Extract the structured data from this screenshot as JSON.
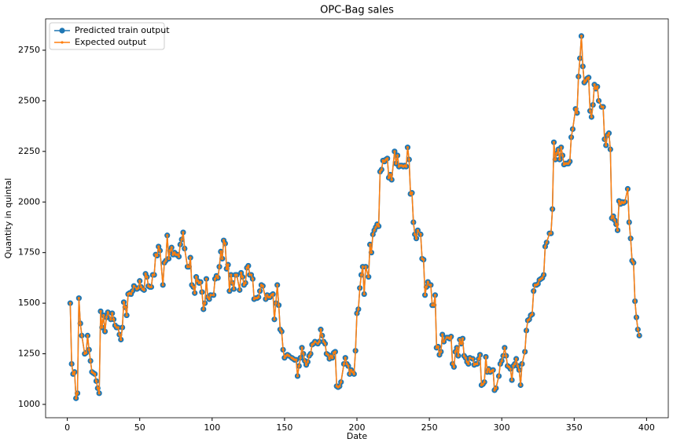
{
  "chart_data": {
    "type": "line",
    "title": "OPC-Bag sales",
    "x_label": "Date",
    "y_label": "Quantity in quintal",
    "xlim": [
      -15,
      415
    ],
    "ylim": [
      934,
      2905
    ],
    "xticks": [
      0,
      50,
      100,
      150,
      200,
      250,
      300,
      350,
      400
    ],
    "yticks": [
      1000,
      1250,
      1500,
      1750,
      2000,
      2250,
      2500,
      2750
    ],
    "grid": false,
    "legend": "upper left",
    "x": [
      2,
      3,
      4,
      5,
      6,
      7,
      8,
      9,
      10,
      12,
      13,
      14,
      15,
      16,
      17,
      18,
      19,
      20,
      21,
      22,
      23,
      24,
      25,
      26,
      27,
      28,
      30,
      31,
      32,
      33,
      34,
      35,
      36,
      37,
      38,
      39,
      40,
      41,
      42,
      43,
      44,
      45,
      46,
      48,
      49,
      50,
      51,
      52,
      53,
      54,
      55,
      56,
      57,
      58,
      59,
      60,
      61,
      62,
      63,
      64,
      66,
      67,
      68,
      69,
      70,
      71,
      72,
      73,
      74,
      75,
      76,
      77,
      78,
      79,
      80,
      81,
      83,
      84,
      85,
      86,
      87,
      88,
      89,
      90,
      91,
      92,
      93,
      94,
      95,
      96,
      97,
      98,
      99,
      101,
      102,
      103,
      104,
      105,
      106,
      107,
      108,
      109,
      110,
      111,
      112,
      113,
      114,
      115,
      116,
      117,
      119,
      120,
      121,
      122,
      123,
      124,
      125,
      126,
      127,
      128,
      129,
      130,
      131,
      132,
      133,
      134,
      135,
      137,
      138,
      139,
      140,
      141,
      142,
      143,
      144,
      145,
      146,
      147,
      148,
      149,
      150,
      151,
      152,
      153,
      155,
      156,
      157,
      158,
      159,
      160,
      161,
      162,
      163,
      164,
      165,
      166,
      167,
      168,
      169,
      170,
      171,
      173,
      174,
      175,
      176,
      177,
      178,
      179,
      180,
      181,
      182,
      183,
      184,
      185,
      186,
      187,
      188,
      189,
      191,
      192,
      193,
      194,
      195,
      196,
      197,
      198,
      199,
      200,
      201,
      202,
      203,
      204,
      205,
      206,
      208,
      209,
      210,
      211,
      212,
      213,
      214,
      215,
      216,
      217,
      218,
      219,
      220,
      221,
      222,
      223,
      224,
      226,
      227,
      228,
      229,
      230,
      231,
      232,
      233,
      234,
      235,
      236,
      237,
      238,
      239,
      240,
      241,
      242,
      244,
      245,
      246,
      247,
      248,
      249,
      250,
      251,
      252,
      253,
      254,
      255,
      256,
      257,
      258,
      259,
      260,
      262,
      263,
      264,
      265,
      266,
      267,
      268,
      269,
      270,
      271,
      272,
      273,
      274,
      275,
      276,
      277,
      278,
      280,
      281,
      282,
      283,
      284,
      285,
      286,
      287,
      288,
      289,
      290,
      291,
      292,
      293,
      294,
      295,
      296,
      298,
      299,
      300,
      301,
      302,
      303,
      304,
      305,
      306,
      307,
      308,
      309,
      310,
      311,
      312,
      313,
      314,
      316,
      317,
      318,
      319,
      320,
      321,
      322,
      323,
      324,
      325,
      326,
      327,
      328,
      329,
      330,
      331,
      333,
      334,
      335,
      336,
      337,
      338,
      339,
      340,
      341,
      342,
      343,
      344,
      345,
      346,
      347,
      348,
      349,
      351,
      352,
      353,
      354,
      355,
      356,
      357,
      358,
      359,
      360,
      361,
      362,
      363,
      364,
      365,
      366,
      367,
      369,
      370,
      371,
      372,
      373,
      374,
      375,
      376,
      377,
      378,
      379,
      380,
      381,
      382,
      383,
      384,
      385,
      387,
      388,
      389,
      390,
      391,
      392,
      393,
      394,
      395
    ],
    "series": [
      {
        "name": "Predicted train output",
        "color": "#1f77b4",
        "values": [
          1500,
          1200,
          1150,
          1160,
          1030,
          1055,
          1525,
          1400,
          1340,
          1250,
          1255,
          1340,
          1270,
          1215,
          1160,
          1155,
          1150,
          1115,
          1080,
          1055,
          1460,
          1380,
          1440,
          1360,
          1430,
          1455,
          1420,
          1450,
          1420,
          1390,
          1380,
          1380,
          1345,
          1320,
          1380,
          1505,
          1480,
          1440,
          1545,
          1550,
          1545,
          1560,
          1585,
          1570,
          1575,
          1610,
          1580,
          1570,
          1565,
          1645,
          1630,
          1585,
          1580,
          1580,
          1640,
          1640,
          1740,
          1735,
          1780,
          1760,
          1590,
          1700,
          1710,
          1835,
          1720,
          1760,
          1775,
          1740,
          1750,
          1740,
          1740,
          1730,
          1790,
          1815,
          1850,
          1770,
          1680,
          1680,
          1725,
          1590,
          1580,
          1550,
          1630,
          1610,
          1600,
          1605,
          1555,
          1470,
          1500,
          1620,
          1530,
          1520,
          1540,
          1540,
          1620,
          1635,
          1625,
          1680,
          1755,
          1720,
          1810,
          1795,
          1670,
          1690,
          1560,
          1640,
          1600,
          1570,
          1640,
          1640,
          1565,
          1650,
          1630,
          1590,
          1600,
          1675,
          1685,
          1640,
          1640,
          1620,
          1520,
          1525,
          1525,
          1530,
          1560,
          1590,
          1585,
          1520,
          1540,
          1530,
          1530,
          1540,
          1545,
          1420,
          1500,
          1590,
          1490,
          1370,
          1360,
          1270,
          1230,
          1240,
          1245,
          1240,
          1230,
          1225,
          1220,
          1220,
          1140,
          1190,
          1230,
          1280,
          1250,
          1215,
          1195,
          1210,
          1240,
          1250,
          1295,
          1300,
          1310,
          1300,
          1310,
          1370,
          1340,
          1310,
          1300,
          1250,
          1245,
          1225,
          1240,
          1230,
          1255,
          1260,
          1090,
          1085,
          1090,
          1110,
          1200,
          1230,
          1200,
          1190,
          1150,
          1170,
          1160,
          1150,
          1265,
          1450,
          1470,
          1575,
          1640,
          1680,
          1545,
          1680,
          1630,
          1790,
          1750,
          1840,
          1860,
          1875,
          1890,
          1880,
          2150,
          2160,
          2205,
          2200,
          2210,
          2215,
          2120,
          2135,
          2110,
          2250,
          2190,
          2230,
          2175,
          2180,
          2180,
          2175,
          2180,
          2175,
          2270,
          2210,
          2040,
          2045,
          1900,
          1840,
          1820,
          1860,
          1840,
          1720,
          1715,
          1540,
          1580,
          1605,
          1590,
          1590,
          1490,
          1490,
          1540,
          1280,
          1285,
          1245,
          1260,
          1345,
          1310,
          1330,
          1330,
          1325,
          1335,
          1200,
          1185,
          1260,
          1280,
          1240,
          1320,
          1300,
          1325,
          1240,
          1230,
          1210,
          1200,
          1230,
          1225,
          1195,
          1200,
          1200,
          1225,
          1245,
          1095,
          1100,
          1110,
          1235,
          1160,
          1175,
          1160,
          1165,
          1170,
          1070,
          1080,
          1140,
          1200,
          1215,
          1240,
          1280,
          1240,
          1190,
          1185,
          1175,
          1120,
          1190,
          1200,
          1225,
          1190,
          1170,
          1095,
          1200,
          1260,
          1365,
          1415,
          1420,
          1440,
          1445,
          1560,
          1590,
          1590,
          1595,
          1615,
          1620,
          1625,
          1640,
          1780,
          1800,
          1845,
          1845,
          1965,
          2295,
          2210,
          2240,
          2260,
          2210,
          2270,
          2230,
          2185,
          2190,
          2190,
          2190,
          2200,
          2320,
          2360,
          2460,
          2440,
          2620,
          2710,
          2820,
          2670,
          2590,
          2600,
          2610,
          2615,
          2450,
          2420,
          2480,
          2580,
          2560,
          2570,
          2500,
          2470,
          2470,
          2310,
          2280,
          2330,
          2340,
          2260,
          1920,
          1930,
          1910,
          1890,
          1860,
          2005,
          1990,
          2000,
          1995,
          2000,
          2065,
          1900,
          1820,
          1710,
          1700,
          1510,
          1430,
          1370,
          1340
        ]
      },
      {
        "name": "Expected output",
        "color": "#ff7f0e",
        "values": [
          1500,
          1200,
          1150,
          1160,
          1030,
          1055,
          1525,
          1400,
          1340,
          1250,
          1255,
          1340,
          1270,
          1215,
          1160,
          1155,
          1150,
          1115,
          1080,
          1055,
          1460,
          1380,
          1440,
          1360,
          1430,
          1455,
          1420,
          1450,
          1420,
          1390,
          1380,
          1380,
          1345,
          1320,
          1380,
          1505,
          1480,
          1440,
          1545,
          1550,
          1545,
          1560,
          1585,
          1570,
          1575,
          1610,
          1580,
          1570,
          1565,
          1645,
          1630,
          1585,
          1580,
          1580,
          1640,
          1640,
          1740,
          1735,
          1780,
          1760,
          1590,
          1700,
          1710,
          1835,
          1720,
          1760,
          1775,
          1740,
          1750,
          1740,
          1740,
          1730,
          1790,
          1815,
          1850,
          1770,
          1680,
          1680,
          1725,
          1590,
          1580,
          1550,
          1630,
          1610,
          1600,
          1605,
          1555,
          1470,
          1500,
          1620,
          1530,
          1520,
          1540,
          1540,
          1620,
          1635,
          1625,
          1680,
          1755,
          1720,
          1810,
          1795,
          1670,
          1690,
          1560,
          1640,
          1600,
          1570,
          1640,
          1640,
          1565,
          1650,
          1630,
          1590,
          1600,
          1675,
          1685,
          1640,
          1640,
          1620,
          1520,
          1525,
          1525,
          1530,
          1560,
          1590,
          1585,
          1520,
          1540,
          1530,
          1530,
          1540,
          1545,
          1420,
          1500,
          1590,
          1490,
          1370,
          1360,
          1270,
          1230,
          1240,
          1245,
          1240,
          1230,
          1225,
          1220,
          1220,
          1140,
          1190,
          1230,
          1280,
          1250,
          1215,
          1195,
          1210,
          1240,
          1250,
          1295,
          1300,
          1310,
          1300,
          1310,
          1370,
          1340,
          1310,
          1300,
          1250,
          1245,
          1225,
          1240,
          1230,
          1255,
          1260,
          1090,
          1085,
          1090,
          1110,
          1200,
          1230,
          1200,
          1190,
          1150,
          1170,
          1160,
          1150,
          1265,
          1450,
          1470,
          1575,
          1640,
          1680,
          1545,
          1680,
          1630,
          1790,
          1750,
          1840,
          1860,
          1875,
          1890,
          1880,
          2150,
          2160,
          2205,
          2200,
          2210,
          2215,
          2120,
          2135,
          2110,
          2250,
          2190,
          2230,
          2175,
          2180,
          2180,
          2175,
          2180,
          2175,
          2270,
          2210,
          2040,
          2045,
          1900,
          1840,
          1820,
          1860,
          1840,
          1720,
          1715,
          1540,
          1580,
          1605,
          1590,
          1590,
          1490,
          1490,
          1540,
          1280,
          1285,
          1245,
          1260,
          1345,
          1310,
          1330,
          1330,
          1325,
          1335,
          1200,
          1185,
          1260,
          1280,
          1240,
          1320,
          1300,
          1325,
          1240,
          1230,
          1210,
          1200,
          1230,
          1225,
          1195,
          1200,
          1200,
          1225,
          1245,
          1095,
          1100,
          1110,
          1235,
          1160,
          1175,
          1160,
          1165,
          1170,
          1070,
          1080,
          1140,
          1200,
          1215,
          1240,
          1280,
          1240,
          1190,
          1185,
          1175,
          1120,
          1190,
          1200,
          1225,
          1190,
          1170,
          1095,
          1200,
          1260,
          1365,
          1415,
          1420,
          1440,
          1445,
          1560,
          1590,
          1590,
          1595,
          1615,
          1620,
          1625,
          1640,
          1780,
          1800,
          1845,
          1845,
          1965,
          2295,
          2210,
          2240,
          2260,
          2210,
          2270,
          2230,
          2185,
          2190,
          2190,
          2190,
          2200,
          2320,
          2360,
          2460,
          2440,
          2620,
          2710,
          2820,
          2670,
          2590,
          2600,
          2610,
          2615,
          2450,
          2420,
          2480,
          2580,
          2560,
          2570,
          2500,
          2470,
          2470,
          2310,
          2280,
          2330,
          2340,
          2260,
          1920,
          1930,
          1910,
          1890,
          1860,
          2005,
          1990,
          2000,
          1995,
          2000,
          2065,
          1900,
          1820,
          1710,
          1700,
          1510,
          1430,
          1370,
          1340
        ]
      }
    ]
  }
}
